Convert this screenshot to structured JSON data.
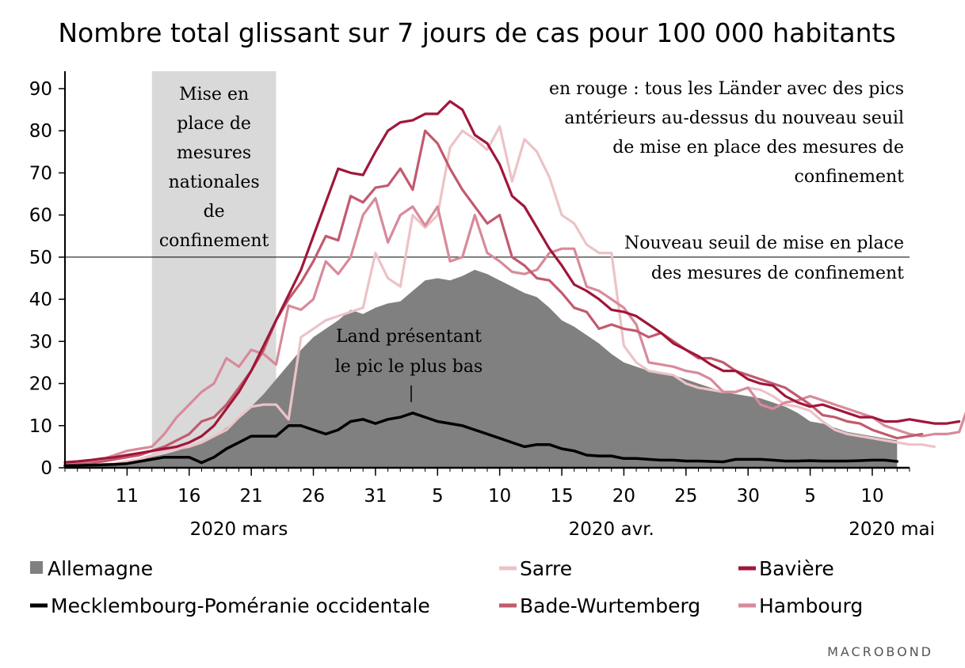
{
  "colors": {
    "allemagne": "#808080",
    "sarre": "#ecc3c7",
    "baviere": "#a0163a",
    "mecklembourg": "#000000",
    "bade_wurtemberg": "#c25a6e",
    "hambourg": "#d88a9a",
    "shade": "#d9d9d9"
  },
  "chart_data": {
    "type": "line",
    "title": "Nombre total glissant sur 7 jours de cas pour 100 000 habitants",
    "ylim": [
      0,
      90
    ],
    "yticks": [
      0,
      10,
      20,
      30,
      40,
      50,
      60,
      70,
      80,
      90
    ],
    "x_start": "2020-03-06",
    "x_end": "2020-05-13",
    "xticks": [
      {
        "date": "2020-03-11",
        "label": "11"
      },
      {
        "date": "2020-03-16",
        "label": "16"
      },
      {
        "date": "2020-03-21",
        "label": "21"
      },
      {
        "date": "2020-03-26",
        "label": "26"
      },
      {
        "date": "2020-03-31",
        "label": "31"
      },
      {
        "date": "2020-04-05",
        "label": "5"
      },
      {
        "date": "2020-04-10",
        "label": "10"
      },
      {
        "date": "2020-04-15",
        "label": "15"
      },
      {
        "date": "2020-04-20",
        "label": "20"
      },
      {
        "date": "2020-04-25",
        "label": "25"
      },
      {
        "date": "2020-04-30",
        "label": "30"
      },
      {
        "date": "2020-05-05",
        "label": "5"
      },
      {
        "date": "2020-05-10",
        "label": "10"
      }
    ],
    "month_labels": [
      {
        "date": "2020-03-20",
        "label": "2020 mars"
      },
      {
        "date": "2020-04-19",
        "label": "2020 avr."
      },
      {
        "date": "2020-05-10",
        "label": "2020 mai"
      }
    ],
    "shaded_region": {
      "start": "2020-03-13",
      "end": "2020-03-23",
      "label": [
        "Mise en",
        "place de",
        "mesures",
        "nationales",
        "de",
        "confinement"
      ]
    },
    "threshold": {
      "value": 50,
      "label": [
        "Nouveau seuil de mise en place",
        "des mesures de confinement"
      ]
    },
    "annotation_red": [
      "en rouge : tous les Länder avec des pics",
      "antérieurs au-dessus du nouveau seuil",
      "de mise en place des mesures de",
      "confinement"
    ],
    "annotation_low": [
      "Land présentant",
      "le pic le plus bas"
    ],
    "series": [
      {
        "name": "Allemagne",
        "key": "allemagne",
        "style": "area",
        "start": "2020-03-06",
        "values": [
          0.5,
          0.6,
          0.8,
          1.0,
          1.2,
          1.5,
          2.0,
          2.6,
          3.2,
          4,
          5,
          6,
          7.5,
          9.5,
          12,
          14.5,
          17.5,
          21,
          24.5,
          28,
          31,
          33,
          35,
          37.5,
          36.5,
          38,
          39,
          39.5,
          42,
          44.5,
          45,
          44.5,
          45.5,
          47,
          46,
          44.5,
          43,
          41.5,
          40.5,
          38,
          35,
          33.5,
          31.5,
          29.5,
          27,
          25,
          24,
          23,
          22.5,
          22,
          21,
          20,
          19,
          18,
          17.5,
          17,
          16.5,
          15.5,
          14.5,
          13,
          11,
          10.5,
          9.5,
          8.5,
          8,
          7.5,
          7,
          6.5
        ]
      },
      {
        "name": "Mecklembourg-Poméranie occidentale",
        "key": "mecklembourg",
        "style": "line",
        "start": "2020-03-06",
        "values": [
          0.5,
          0.5,
          0.6,
          0.7,
          0.8,
          1.0,
          1.5,
          2.0,
          2.5,
          2.5,
          2.5,
          1.2,
          2.5,
          4.5,
          6,
          7.5,
          7.5,
          7.5,
          10,
          10,
          9,
          8,
          9,
          11,
          11.5,
          10.5,
          11.5,
          12,
          13,
          12,
          11,
          10.5,
          10,
          9,
          8,
          7,
          6,
          5,
          5.5,
          5.5,
          4.5,
          4,
          3,
          2.8,
          2.8,
          2.2,
          2.2,
          2,
          1.8,
          1.8,
          1.6,
          1.6,
          1.5,
          1.4,
          2,
          2,
          2,
          1.8,
          1.6,
          1.6,
          1.7,
          1.6,
          1.6,
          1.6,
          1.7,
          1.8,
          1.8,
          1.5
        ]
      },
      {
        "name": "Sarre",
        "key": "sarre",
        "style": "line",
        "start": "2020-03-06",
        "values": [
          0.3,
          0.5,
          0.5,
          0.8,
          1,
          1.5,
          2,
          3,
          4,
          4.5,
          5,
          6,
          7.5,
          9,
          12,
          14.5,
          15,
          15,
          11.5,
          31,
          33,
          35,
          36,
          37,
          38,
          51,
          45,
          43,
          60,
          57,
          60,
          76,
          80,
          78,
          75.5,
          81,
          68,
          78,
          75,
          69,
          60,
          58,
          53,
          51,
          51,
          29,
          25,
          23,
          22.5,
          22,
          20,
          19,
          18.5,
          18,
          18,
          19,
          18.5,
          17,
          15,
          14.5,
          13.5,
          11,
          9,
          8,
          7.5,
          7,
          6.5,
          6,
          5.5,
          5.5,
          5
        ]
      },
      {
        "name": "Bavière",
        "key": "baviere",
        "style": "line",
        "start": "2020-03-06",
        "values": [
          1.3,
          1.5,
          1.8,
          2.2,
          2.5,
          3,
          3.5,
          4,
          4.5,
          5,
          6,
          7.5,
          10,
          14,
          18,
          23,
          29,
          35,
          41,
          47,
          55,
          63,
          71,
          70,
          69.5,
          75,
          80,
          82,
          82.5,
          84,
          84,
          87,
          85,
          79,
          77,
          72,
          64.5,
          62,
          57,
          52,
          48,
          43.5,
          42,
          40,
          37.5,
          37,
          36,
          34,
          32,
          29.5,
          28,
          26.5,
          24.5,
          23,
          23,
          21,
          20,
          19.5,
          17,
          15.5,
          14.5,
          15,
          14,
          13,
          12,
          12,
          11,
          11,
          11.5,
          11,
          10.5,
          10.5,
          11
        ]
      },
      {
        "name": "Bade-Wurtemberg",
        "key": "bade_wurtemberg",
        "style": "line",
        "start": "2020-03-06",
        "values": [
          0.5,
          0.8,
          1,
          1.5,
          2,
          2.5,
          3,
          4,
          5,
          6.5,
          8,
          11,
          12,
          15,
          19,
          23,
          28,
          35,
          40,
          44,
          49,
          55,
          54,
          64.5,
          63,
          66.5,
          67,
          71,
          66,
          80,
          77,
          71,
          66,
          62,
          58,
          60,
          50,
          48,
          45,
          44.5,
          41.5,
          38,
          37,
          33,
          34,
          33,
          32.5,
          31,
          32,
          30,
          28,
          26,
          26,
          25,
          23,
          22,
          21,
          20,
          19,
          17,
          15,
          12.5,
          12,
          11,
          10.5,
          9,
          8,
          7,
          7.5,
          8
        ]
      },
      {
        "name": "Hambourg",
        "key": "hambourg",
        "style": "line",
        "start": "2020-03-06",
        "values": [
          1,
          1.2,
          1.5,
          2,
          3,
          4,
          4.5,
          5,
          8,
          12,
          15,
          18,
          20,
          26,
          24,
          28,
          27,
          24.5,
          38.5,
          37.5,
          40,
          49,
          46,
          50,
          60,
          64,
          53.5,
          60,
          62,
          57.5,
          62,
          49,
          50,
          60,
          51,
          49,
          46.5,
          46,
          47,
          51,
          52,
          52,
          43,
          42,
          40,
          38,
          34,
          25,
          24.5,
          24,
          23,
          22.5,
          21,
          18,
          18,
          19,
          15,
          14,
          15.5,
          16,
          17,
          16,
          15,
          14,
          13,
          12,
          10,
          9,
          8,
          7.5,
          8,
          8,
          8.5,
          17
        ]
      }
    ]
  },
  "legend": [
    {
      "key": "allemagne",
      "label": "Allemagne",
      "kind": "square"
    },
    {
      "key": "sarre",
      "label": "Sarre",
      "kind": "line"
    },
    {
      "key": "baviere",
      "label": "Bavière",
      "kind": "line"
    },
    {
      "key": "mecklembourg",
      "label": "Mecklembourg-Poméranie occidentale",
      "kind": "line"
    },
    {
      "key": "bade_wurtemberg",
      "label": "Bade-Wurtemberg",
      "kind": "line"
    },
    {
      "key": "hambourg",
      "label": "Hambourg",
      "kind": "line"
    }
  ],
  "brand": "MACROBOND"
}
